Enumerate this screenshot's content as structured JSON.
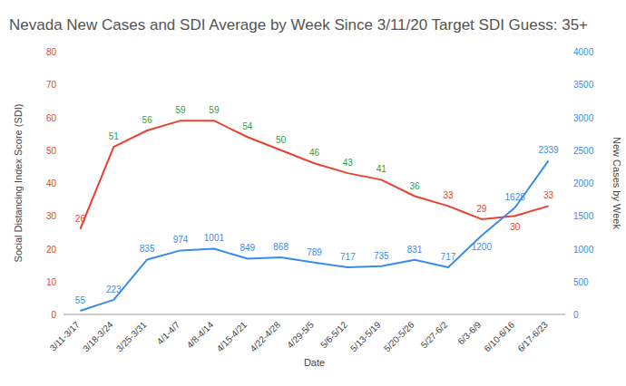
{
  "chart_data": {
    "type": "line",
    "title": "Nevada New Cases and SDI Average by Week Since 3/11/20 Target SDI Guess: 35+",
    "x_label": "Date",
    "y_label": "Social Distancing Index Score (SDI)",
    "y2_label": "New Cases by Week",
    "categories": [
      "3/11-3/17",
      "3/18-3/24",
      "3/25-3/31",
      "4/1-4/7",
      "4/8-4/14",
      "4/15-4/21",
      "4/22-4/28",
      "4/29-5/5",
      "5/6-5/12",
      "5/13-5/19",
      "5/20-5/26",
      "5/27-6/2",
      "6/3-6/9",
      "6/10-6/16",
      "6/17-6/23"
    ],
    "series": [
      {
        "color": "#e8432e",
        "values": [
          26,
          51,
          56,
          59,
          59,
          54,
          50,
          46,
          43,
          41,
          36,
          33,
          29,
          30,
          33
        ],
        "colors": [
          "#e8432e",
          "#2e9e3f",
          "#2e9e3f",
          "#2e9e3f",
          "#2e9e3f",
          "#2e9e3f",
          "#2e9e3f",
          "#2e9e3f",
          "#2e9e3f",
          "#2e9e3f",
          "#2e9e3f",
          "#e8432e",
          "#e8432e",
          "#e8432e",
          "#e8432e"
        ]
      },
      {
        "color": "#3b8beb",
        "axis": "y2",
        "values": [
          55,
          223,
          835,
          974,
          1001,
          849,
          868,
          789,
          717,
          735,
          831,
          717,
          1200,
          1628,
          2339
        ]
      }
    ],
    "ylim": [
      0,
      80
    ],
    "yticks": [
      0,
      10,
      20,
      30,
      40,
      50,
      60,
      70,
      80
    ],
    "y2lim": [
      0,
      4000
    ],
    "y2ticks": [
      0,
      500,
      1000,
      1500,
      2000,
      2500,
      3000,
      3500,
      4000
    ],
    "grid": false,
    "data_labels": true
  }
}
